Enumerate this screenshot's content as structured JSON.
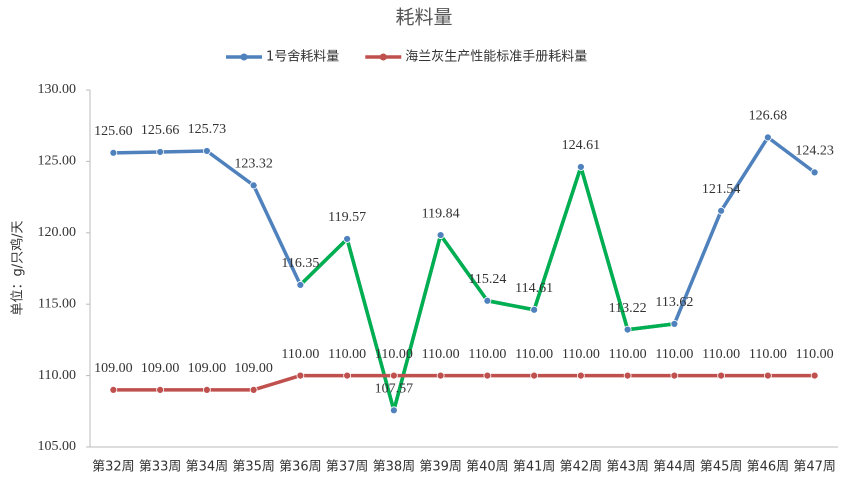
{
  "chart_data": {
    "type": "line",
    "title": "耗料量",
    "y_label": "单位：g/只鸡/天",
    "categories": [
      "第32周",
      "第33周",
      "第34周",
      "第35周",
      "第36周",
      "第37周",
      "第38周",
      "第39周",
      "第40周",
      "第41周",
      "第42周",
      "第43周",
      "第44周",
      "第45周",
      "第46周",
      "第47周"
    ],
    "series": [
      {
        "name": "1号舍耗料量",
        "color": "#4f81bd",
        "values": [
          125.6,
          125.66,
          125.73,
          123.32,
          116.35,
          119.57,
          107.57,
          119.84,
          115.24,
          114.61,
          124.61,
          113.22,
          113.62,
          121.54,
          126.68,
          124.23
        ],
        "value_labels": [
          "125.60",
          "125.66",
          "125.73",
          "123.32",
          "116.35",
          "119.57",
          "107.57",
          "119.84",
          "115.24",
          "114.61",
          "124.61",
          "113.22",
          "113.62",
          "121.54",
          "126.68",
          "124.23"
        ],
        "segment_colors": [
          "#4f81bd",
          "#4f81bd",
          "#4f81bd",
          "#4f81bd",
          "#00b050",
          "#00b050",
          "#00b050",
          "#00b050",
          "#00b050",
          "#00b050",
          "#00b050",
          "#00b050",
          "#4f81bd",
          "#4f81bd",
          "#4f81bd"
        ]
      },
      {
        "name": "海兰灰生产性能标准手册耗料量",
        "color": "#c0504d",
        "values": [
          109,
          109,
          109,
          109,
          110,
          110,
          110,
          110,
          110,
          110,
          110,
          110,
          110,
          110,
          110,
          110
        ],
        "value_labels": [
          "109.00",
          "109.00",
          "109.00",
          "109.00",
          "110.00",
          "110.00",
          "110.00",
          "110.00",
          "110.00",
          "110.00",
          "110.00",
          "110.00",
          "110.00",
          "110.00",
          "110.00",
          "110.00"
        ]
      }
    ],
    "ylim": [
      105,
      130
    ],
    "yticks": [
      {
        "value": 105,
        "label": "105.00"
      },
      {
        "value": 110,
        "label": "110.00"
      },
      {
        "value": 115,
        "label": "115.00"
      },
      {
        "value": 120,
        "label": "120.00"
      },
      {
        "value": 125,
        "label": "125.00"
      },
      {
        "value": 130,
        "label": "130.00"
      }
    ],
    "grid": false,
    "legend": "top"
  }
}
